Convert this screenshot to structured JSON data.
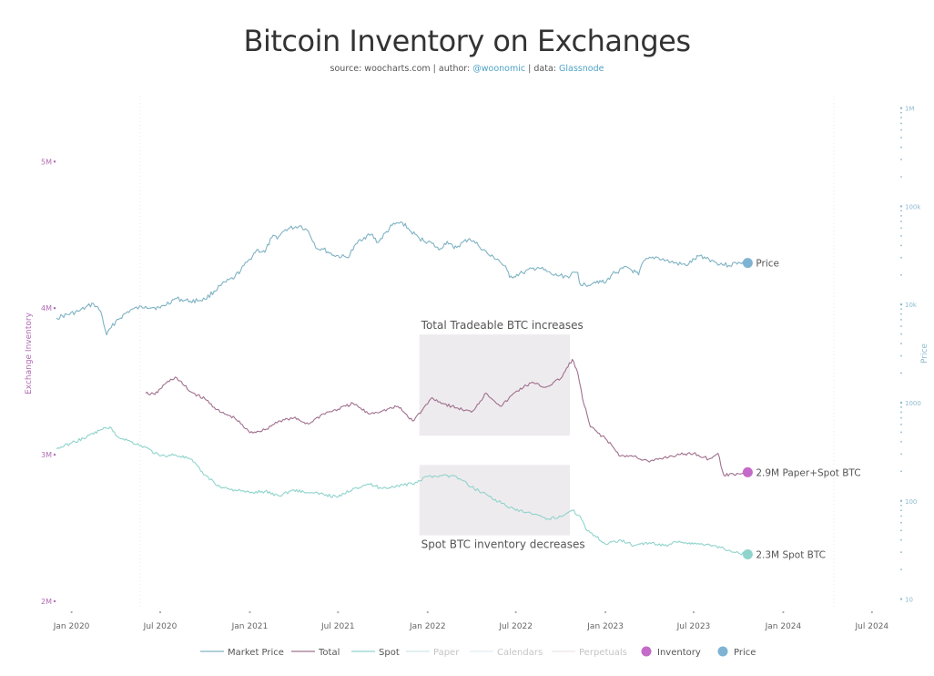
{
  "chart_data": {
    "type": "line",
    "title": "Bitcoin Inventory on Exchanges",
    "subtitle": {
      "source_label": "source: woocharts.com | author:",
      "author": "@woonomic",
      "data_label": "| data:",
      "data_source": "Glassnode"
    },
    "ylabel_left": "Exchange Inventory",
    "ylabel_right": "Price",
    "left_axis": {
      "scale": "linear",
      "range": [
        1950000,
        5450000
      ],
      "ticks": [
        {
          "value": 5000000,
          "label": "5M"
        },
        {
          "value": 4000000,
          "label": "4M"
        },
        {
          "value": 3000000,
          "label": "3M"
        },
        {
          "value": 2000000,
          "label": "2M"
        }
      ]
    },
    "right_axis": {
      "scale": "log",
      "range": [
        8,
        1340000
      ],
      "ticks": [
        {
          "value": 10,
          "label": "10"
        },
        {
          "value": 100,
          "label": "100"
        },
        {
          "value": 1000,
          "label": "1000"
        },
        {
          "value": 10000,
          "label": "10k"
        },
        {
          "value": 100000,
          "label": "100k"
        },
        {
          "value": 1000000,
          "label": "1M"
        }
      ]
    },
    "x_axis": {
      "range": [
        "2019-12-01",
        "2024-07-20"
      ],
      "ticks": [
        {
          "date": "2020-01-01",
          "label": "Jan 2020"
        },
        {
          "date": "2020-07-01",
          "label": "Jul 2020"
        },
        {
          "date": "2021-01-01",
          "label": "Jan 2021"
        },
        {
          "date": "2021-07-01",
          "label": "Jul 2021"
        },
        {
          "date": "2022-01-01",
          "label": "Jan 2022"
        },
        {
          "date": "2022-07-01",
          "label": "Jul 2022"
        },
        {
          "date": "2023-01-01",
          "label": "Jan 2023"
        },
        {
          "date": "2023-07-01",
          "label": "Jul 2023"
        },
        {
          "date": "2024-01-01",
          "label": "Jan 2024"
        },
        {
          "date": "2024-07-01",
          "label": "Jul 2024"
        }
      ]
    },
    "series": [
      {
        "name": "Market Price",
        "axis": "right",
        "color": "#7fb3c4",
        "end_label": "Price",
        "dates": [
          "2019-12-01",
          "2020-01-15",
          "2020-02-15",
          "2020-03-01",
          "2020-03-13",
          "2020-04-01",
          "2020-05-01",
          "2020-06-01",
          "2020-07-01",
          "2020-08-01",
          "2020-09-01",
          "2020-10-01",
          "2020-11-01",
          "2020-12-01",
          "2021-01-01",
          "2021-01-15",
          "2021-02-01",
          "2021-02-15",
          "2021-03-01",
          "2021-03-15",
          "2021-04-14",
          "2021-05-01",
          "2021-05-19",
          "2021-06-01",
          "2021-06-22",
          "2021-07-20",
          "2021-08-15",
          "2021-09-07",
          "2021-09-21",
          "2021-10-20",
          "2021-11-10",
          "2021-11-25",
          "2021-12-15",
          "2022-01-10",
          "2022-01-24",
          "2022-02-10",
          "2022-02-24",
          "2022-03-28",
          "2022-04-15",
          "2022-05-10",
          "2022-05-25",
          "2022-06-13",
          "2022-06-18",
          "2022-07-15",
          "2022-08-15",
          "2022-09-15",
          "2022-10-15",
          "2022-11-05",
          "2022-11-09",
          "2022-11-21",
          "2022-12-15",
          "2023-01-01",
          "2023-01-15",
          "2023-02-15",
          "2023-03-10",
          "2023-03-20",
          "2023-04-14",
          "2023-05-15",
          "2023-06-15",
          "2023-07-14",
          "2023-08-01",
          "2023-08-17",
          "2023-09-11",
          "2023-10-01",
          "2023-10-20"
        ],
        "values": [
          7300,
          8500,
          10200,
          8500,
          4900,
          6800,
          8800,
          9600,
          9200,
          11500,
          10800,
          11300,
          15500,
          19000,
          29000,
          36000,
          34000,
          48000,
          49000,
          58000,
          63500,
          56000,
          37000,
          36500,
          31800,
          30000,
          46000,
          52000,
          42800,
          64000,
          68500,
          57000,
          47000,
          41900,
          36000,
          44000,
          37000,
          47000,
          40000,
          31000,
          29000,
          22500,
          18900,
          21000,
          24000,
          20000,
          19300,
          21300,
          16500,
          15800,
          17400,
          16600,
          20500,
          24000,
          20000,
          27500,
          30500,
          27000,
          25000,
          31400,
          29200,
          26600,
          25000,
          27000,
          26500
        ]
      },
      {
        "name": "Total",
        "axis": "left",
        "color": "#a0708e",
        "end_label": "2.9M Paper+Spot BTC",
        "dates": [
          "2020-06-01",
          "2020-06-20",
          "2020-07-10",
          "2020-08-01",
          "2020-09-01",
          "2020-10-01",
          "2020-11-01",
          "2020-12-01",
          "2021-01-01",
          "2021-02-01",
          "2021-03-01",
          "2021-04-01",
          "2021-05-01",
          "2021-06-01",
          "2021-07-01",
          "2021-08-01",
          "2021-09-01",
          "2021-10-01",
          "2021-11-01",
          "2021-12-01",
          "2021-12-20",
          "2022-01-10",
          "2022-02-01",
          "2022-03-01",
          "2022-04-01",
          "2022-05-01",
          "2022-06-01",
          "2022-07-01",
          "2022-08-01",
          "2022-09-01",
          "2022-10-01",
          "2022-10-25",
          "2022-11-05",
          "2022-11-15",
          "2022-12-01",
          "2023-01-01",
          "2023-02-01",
          "2023-03-01",
          "2023-04-01",
          "2023-05-01",
          "2023-06-01",
          "2023-07-01",
          "2023-08-01",
          "2023-08-20",
          "2023-09-01",
          "2023-10-01",
          "2023-10-20"
        ],
        "values": [
          3420000,
          3410000,
          3480000,
          3530000,
          3430000,
          3380000,
          3290000,
          3250000,
          3150000,
          3170000,
          3230000,
          3250000,
          3210000,
          3280000,
          3310000,
          3350000,
          3280000,
          3300000,
          3330000,
          3230000,
          3300000,
          3390000,
          3350000,
          3320000,
          3290000,
          3420000,
          3330000,
          3430000,
          3490000,
          3460000,
          3520000,
          3650000,
          3560000,
          3380000,
          3190000,
          3110000,
          2990000,
          2990000,
          2950000,
          2980000,
          3000000,
          3010000,
          2970000,
          3010000,
          2860000,
          2870000,
          2880000
        ]
      },
      {
        "name": "Spot",
        "axis": "left",
        "color": "#8fd4cc",
        "end_label": "2.3M Spot BTC",
        "dates": [
          "2019-12-01",
          "2020-01-01",
          "2020-02-01",
          "2020-03-01",
          "2020-03-20",
          "2020-04-01",
          "2020-05-01",
          "2020-06-01",
          "2020-07-01",
          "2020-08-01",
          "2020-09-01",
          "2020-10-01",
          "2020-11-01",
          "2020-12-01",
          "2021-01-01",
          "2021-02-01",
          "2021-03-01",
          "2021-04-01",
          "2021-05-01",
          "2021-06-01",
          "2021-07-01",
          "2021-08-01",
          "2021-09-01",
          "2021-10-01",
          "2021-11-01",
          "2021-12-01",
          "2022-01-01",
          "2022-02-01",
          "2022-03-01",
          "2022-04-01",
          "2022-05-01",
          "2022-06-01",
          "2022-07-01",
          "2022-08-01",
          "2022-09-01",
          "2022-10-01",
          "2022-10-25",
          "2022-11-10",
          "2022-11-25",
          "2022-12-10",
          "2023-01-01",
          "2023-02-01",
          "2023-03-01",
          "2023-04-01",
          "2023-05-01",
          "2023-06-01",
          "2023-07-01",
          "2023-08-01",
          "2023-09-01",
          "2023-10-01",
          "2023-10-20"
        ],
        "values": [
          3040000,
          3080000,
          3120000,
          3170000,
          3190000,
          3130000,
          3090000,
          3050000,
          2990000,
          3000000,
          2970000,
          2860000,
          2780000,
          2760000,
          2740000,
          2750000,
          2720000,
          2760000,
          2740000,
          2730000,
          2710000,
          2770000,
          2800000,
          2770000,
          2790000,
          2800000,
          2850000,
          2860000,
          2850000,
          2780000,
          2730000,
          2670000,
          2620000,
          2600000,
          2560000,
          2580000,
          2620000,
          2580000,
          2480000,
          2450000,
          2390000,
          2420000,
          2380000,
          2400000,
          2380000,
          2410000,
          2390000,
          2390000,
          2360000,
          2330000,
          2320000
        ]
      }
    ],
    "annotations": [
      {
        "text": "Total Tradeable BTC increases",
        "x_start": "2021-12-15",
        "x_end": "2022-10-20",
        "y_top": 3820000,
        "y_bottom": 3130000,
        "label_position": "above"
      },
      {
        "text": "Spot BTC inventory decreases",
        "x_start": "2021-12-15",
        "x_end": "2022-10-20",
        "y_top": 2930000,
        "y_bottom": 2450000,
        "label_position": "below"
      }
    ],
    "legend": {
      "position": "bottom",
      "items": [
        {
          "label": "Market Price",
          "kind": "line",
          "color": "#7fb3c4",
          "active": true
        },
        {
          "label": "Total",
          "kind": "line",
          "color": "#a0708e",
          "active": true
        },
        {
          "label": "Spot",
          "kind": "line",
          "color": "#8fd4cc",
          "active": true
        },
        {
          "label": "Paper",
          "kind": "line",
          "color": "#cfe8e5",
          "active": false
        },
        {
          "label": "Calendars",
          "kind": "line",
          "color": "#e2eef0",
          "active": false
        },
        {
          "label": "Perpetuals",
          "kind": "line",
          "color": "#ece4ea",
          "active": false
        },
        {
          "label": "Inventory",
          "kind": "dot",
          "color": "#c46ac8",
          "active": true
        },
        {
          "label": "Price",
          "kind": "dot",
          "color": "#7fb3d4",
          "active": true
        }
      ]
    },
    "colors": {
      "left_axis": "#b06ab3",
      "right_axis": "#8cbad0",
      "tick_text": "#666666",
      "annotation_box": "#ece9ec",
      "inventory_dot": "#c46ac8",
      "spot_dot": "#8fd4cc",
      "price_dot": "#7fb3d4"
    }
  }
}
